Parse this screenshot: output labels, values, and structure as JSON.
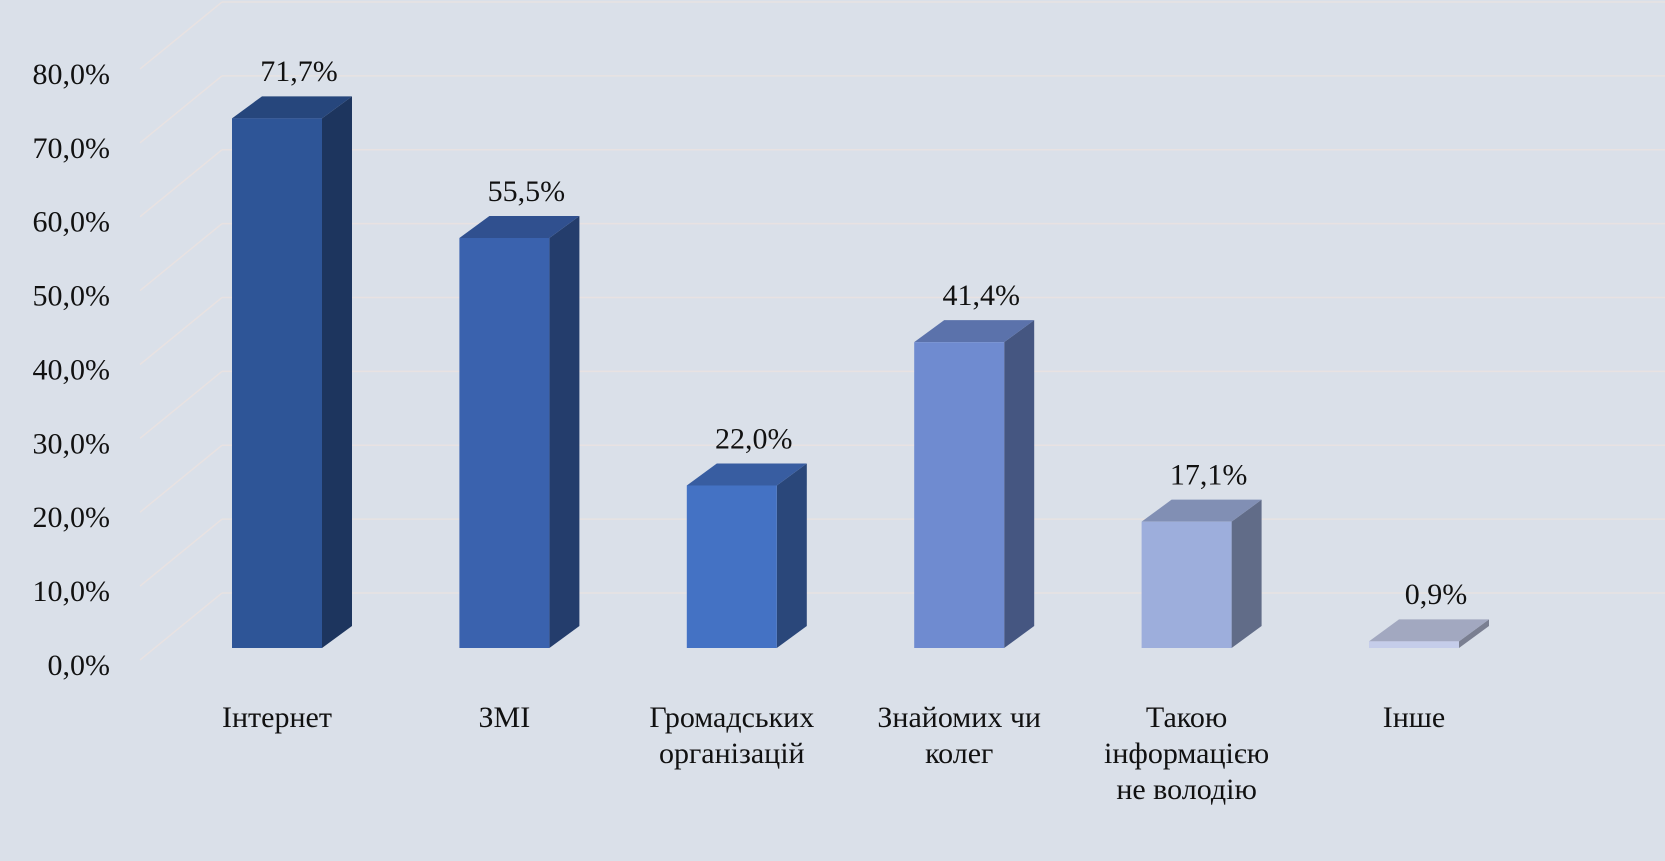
{
  "chart_data": {
    "type": "bar3d",
    "categories": [
      "Інтернет",
      "ЗМІ",
      "Громадських організацій",
      "Знайомих чи колег",
      "Такою інформацією не володію",
      "Інше"
    ],
    "values": [
      71.7,
      55.5,
      22.0,
      41.4,
      17.1,
      0.9
    ],
    "value_labels": [
      "71,7%",
      "55,5%",
      "22,0%",
      "41,4%",
      "17,1%",
      "0,9%"
    ],
    "colors": [
      "#2e5597",
      "#3a62ae",
      "#4472c4",
      "#6f8bd0",
      "#9daedc",
      "#c5cdea"
    ],
    "ylim": [
      0,
      80
    ],
    "yticks": [
      {
        "value": 0,
        "label": "0,0%"
      },
      {
        "value": 10,
        "label": "10,0%"
      },
      {
        "value": 20,
        "label": "20,0%"
      },
      {
        "value": 30,
        "label": "30,0%"
      },
      {
        "value": 40,
        "label": "40,0%"
      },
      {
        "value": 50,
        "label": "50,0%"
      },
      {
        "value": 60,
        "label": "60,0%"
      },
      {
        "value": 70,
        "label": "70,0%"
      },
      {
        "value": 80,
        "label": "80,0%"
      }
    ],
    "grid": true
  }
}
